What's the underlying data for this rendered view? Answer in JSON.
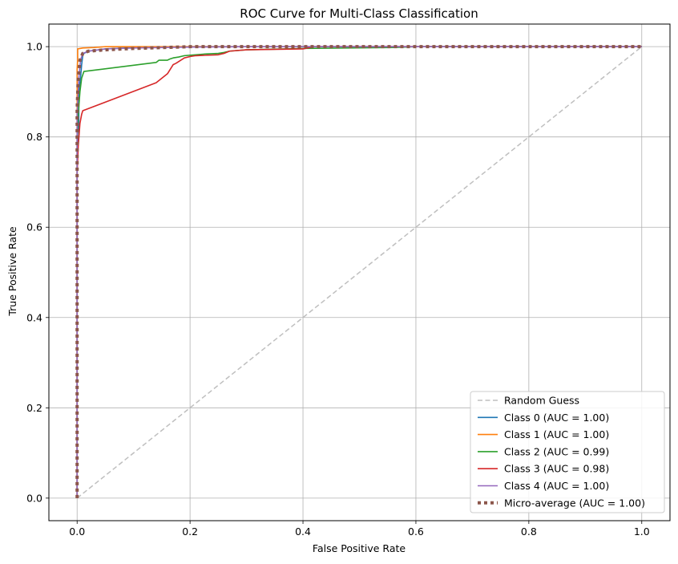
{
  "chart_data": {
    "type": "line",
    "title": "ROC Curve for Multi-Class Classification",
    "xlabel": "False Positive Rate",
    "ylabel": "True Positive Rate",
    "xlim": [
      -0.05,
      1.05
    ],
    "ylim": [
      -0.05,
      1.05
    ],
    "xticks": [
      "0.0",
      "0.2",
      "0.4",
      "0.6",
      "0.8",
      "1.0"
    ],
    "yticks": [
      "0.0",
      "0.2",
      "0.4",
      "0.6",
      "0.8",
      "1.0"
    ],
    "grid": true,
    "legend_position": "lower-right",
    "series": [
      {
        "name": "Random Guess",
        "color": "#bfbfbf",
        "style": "dashed",
        "x": [
          0,
          1
        ],
        "y": [
          0,
          1
        ]
      },
      {
        "name": "Class 0 (AUC = 1.00)",
        "color": "#1f77b4",
        "style": "solid",
        "x": [
          0,
          0,
          0.003,
          0.003,
          0.006,
          0.008,
          0.01,
          0.012,
          0.02,
          0.05,
          0.1,
          0.2,
          1.0
        ],
        "y": [
          0,
          0.78,
          0.8,
          0.9,
          0.93,
          0.96,
          0.98,
          0.985,
          0.99,
          0.995,
          0.998,
          1.0,
          1.0
        ]
      },
      {
        "name": "Class 1 (AUC = 1.00)",
        "color": "#ff7f0e",
        "style": "solid",
        "x": [
          0,
          0,
          0.001,
          0.001,
          0.01,
          0.03,
          0.05,
          1.0
        ],
        "y": [
          0,
          0.95,
          0.97,
          0.995,
          0.997,
          0.998,
          1.0,
          1.0
        ]
      },
      {
        "name": "Class 2 (AUC = 0.99)",
        "color": "#2ca02c",
        "style": "solid",
        "x": [
          0,
          0,
          0.002,
          0.005,
          0.008,
          0.012,
          0.14,
          0.145,
          0.16,
          0.165,
          0.17,
          0.18,
          0.19,
          0.21,
          0.23,
          0.25,
          0.26,
          0.27,
          0.3,
          0.4,
          0.56,
          0.6,
          1.0
        ],
        "y": [
          0,
          0.8,
          0.85,
          0.9,
          0.93,
          0.945,
          0.965,
          0.97,
          0.97,
          0.973,
          0.975,
          0.977,
          0.98,
          0.982,
          0.984,
          0.985,
          0.987,
          0.99,
          0.993,
          0.996,
          0.998,
          1.0,
          1.0
        ]
      },
      {
        "name": "Class 3 (AUC = 0.98)",
        "color": "#d62728",
        "style": "solid",
        "x": [
          0,
          0,
          0.002,
          0.005,
          0.008,
          0.01,
          0.14,
          0.15,
          0.16,
          0.165,
          0.17,
          0.175,
          0.18,
          0.19,
          0.2,
          0.21,
          0.25,
          0.26,
          0.27,
          0.3,
          0.4,
          0.42,
          1.0
        ],
        "y": [
          0,
          0.72,
          0.78,
          0.83,
          0.85,
          0.858,
          0.92,
          0.93,
          0.94,
          0.95,
          0.96,
          0.963,
          0.967,
          0.975,
          0.978,
          0.98,
          0.982,
          0.985,
          0.99,
          0.993,
          0.995,
          1.0,
          1.0
        ]
      },
      {
        "name": "Class 4 (AUC = 1.00)",
        "color": "#9467bd",
        "style": "solid",
        "x": [
          0,
          0,
          0.003,
          0.006,
          0.01,
          0.02,
          0.05,
          0.1,
          0.2,
          0.3,
          1.0
        ],
        "y": [
          0,
          0.85,
          0.93,
          0.97,
          0.985,
          0.99,
          0.995,
          0.997,
          0.999,
          1.0,
          1.0
        ]
      },
      {
        "name": "Micro-average (AUC = 1.00)",
        "color": "#8c564b",
        "style": "dotted",
        "x": [
          0,
          0,
          0.002,
          0.005,
          0.01,
          0.02,
          0.05,
          0.1,
          0.15,
          0.2,
          0.4,
          1.0
        ],
        "y": [
          0,
          0.86,
          0.93,
          0.97,
          0.985,
          0.99,
          0.993,
          0.996,
          0.998,
          1.0,
          1.0,
          1.0
        ]
      }
    ]
  }
}
